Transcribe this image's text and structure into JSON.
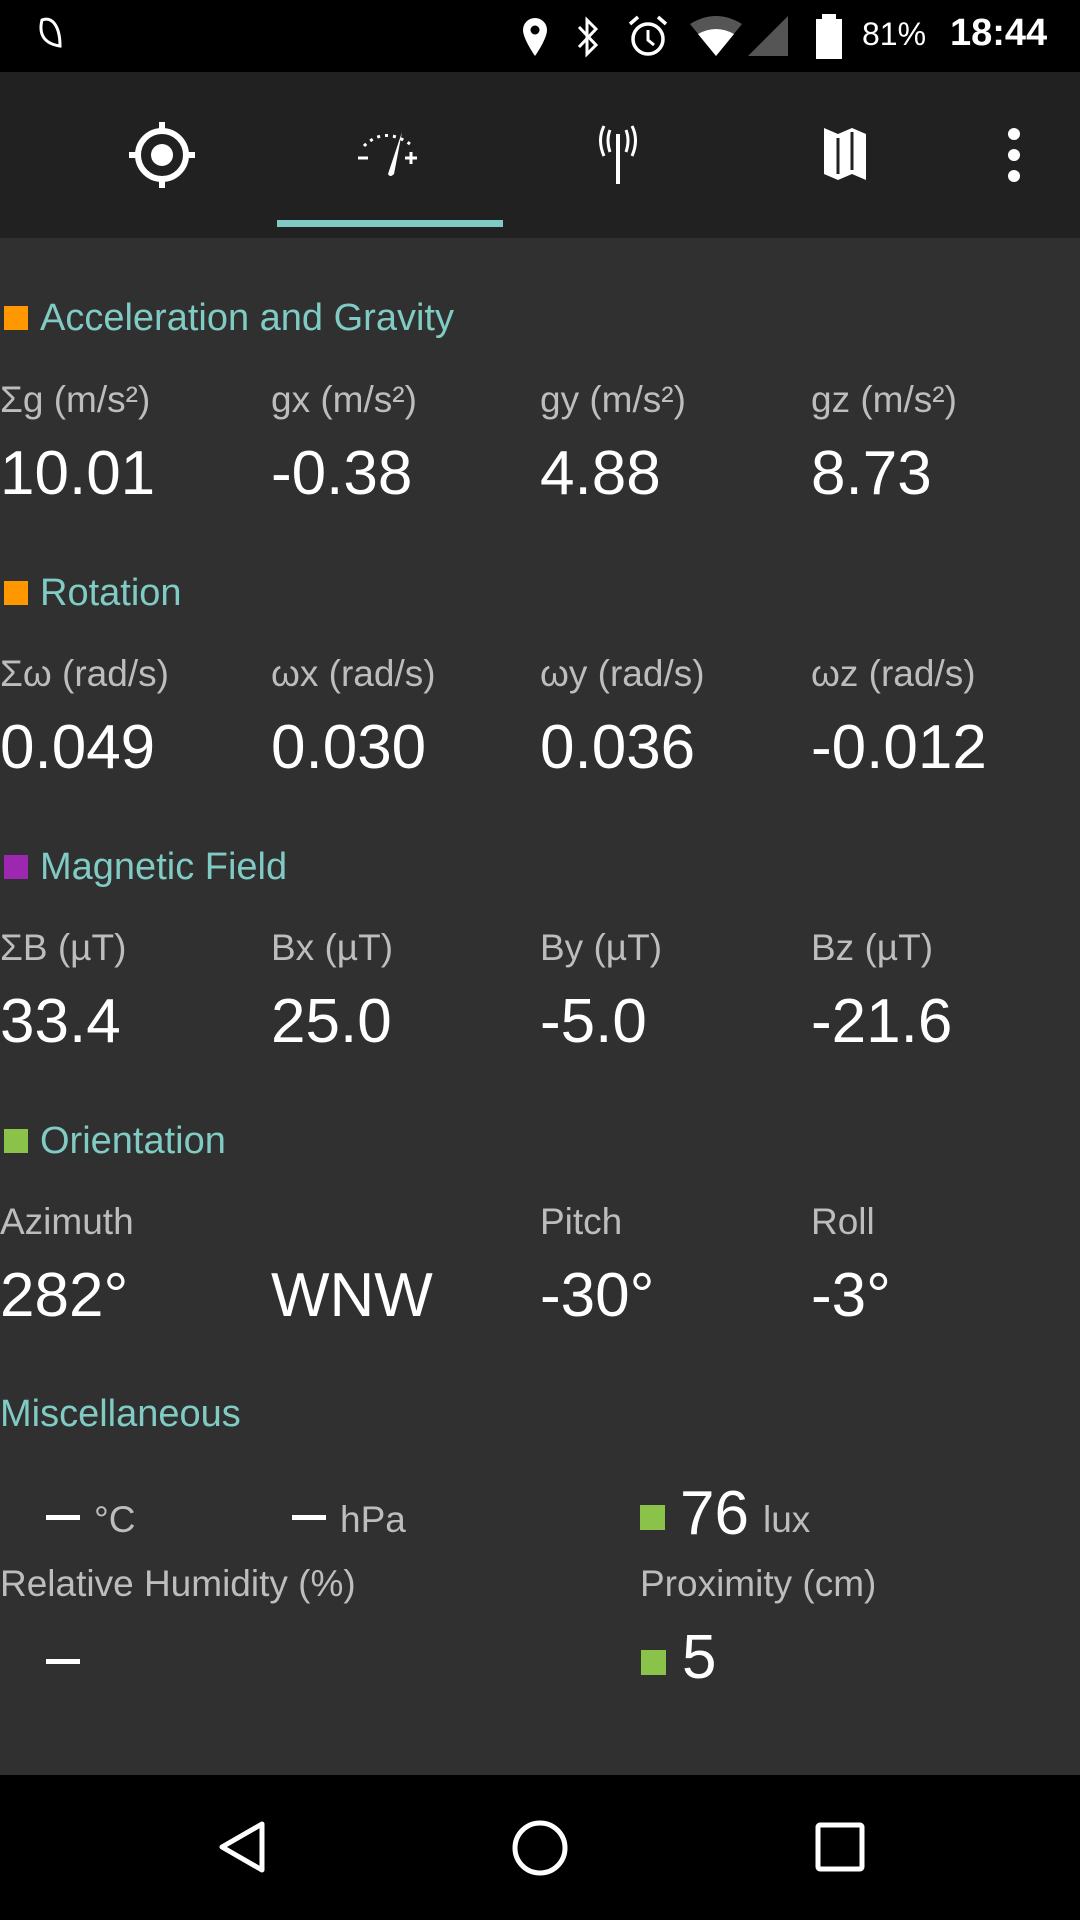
{
  "status_bar": {
    "battery": "81%",
    "time": "18:44",
    "icons": [
      "notification-icon",
      "location-icon",
      "bluetooth-icon",
      "alarm-icon",
      "wifi-icon",
      "cell-signal-icon",
      "battery-icon"
    ]
  },
  "tabs": [
    {
      "icon": "gps-target-icon"
    },
    {
      "icon": "gauge-icon",
      "selected": true
    },
    {
      "icon": "antenna-icon"
    },
    {
      "icon": "map-icon"
    },
    {
      "icon": "more-vert-icon"
    }
  ],
  "accent": "#80cbc4",
  "sections": [
    {
      "title": "Acceleration and Gravity",
      "color": "#ff9800",
      "labels": [
        "Σg (m/s²)",
        "gx (m/s²)",
        "gy (m/s²)",
        "gz (m/s²)"
      ],
      "values": [
        "10.01",
        "-0.38",
        "4.88",
        "8.73"
      ]
    },
    {
      "title": "Rotation",
      "color": "#ff9800",
      "labels": [
        "Σω (rad/s)",
        "ωx (rad/s)",
        "ωy (rad/s)",
        "ωz (rad/s)"
      ],
      "values": [
        "0.049",
        "0.030",
        "0.036",
        "-0.012"
      ]
    },
    {
      "title": "Magnetic Field",
      "color": "#9c27b0",
      "labels": [
        "ΣB (µT)",
        "Bx (µT)",
        "By (µT)",
        "Bz (µT)"
      ],
      "values": [
        "33.4",
        "25.0",
        "-5.0",
        "-21.6"
      ]
    },
    {
      "title": "Orientation",
      "color": "#8bc34a",
      "labels": [
        "Azimuth",
        "",
        "Pitch",
        "Roll"
      ],
      "values": [
        "282°",
        "WNW",
        "-30°",
        "-3°"
      ]
    }
  ],
  "misc": {
    "title": "Miscellaneous",
    "temp_unit": "°C",
    "pressure_unit": "hPa",
    "light_value": "76",
    "light_unit": "lux",
    "humidity_label": "Relative Humidity (%)",
    "proximity_label": "Proximity (cm)",
    "proximity_value": "5",
    "status_color": "#8bc34a"
  },
  "nav": [
    "back-icon",
    "home-icon",
    "recents-icon"
  ]
}
